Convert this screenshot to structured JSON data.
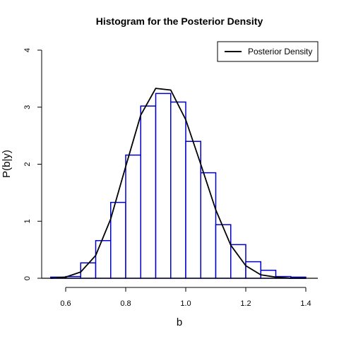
{
  "chart_data": {
    "type": "bar",
    "title": "Histogram for the Posterior Density",
    "xlabel": "b",
    "ylabel": "P(b|y)",
    "xlim": [
      0.52,
      1.44
    ],
    "ylim": [
      0,
      4
    ],
    "x_ticks": [
      0.6,
      0.8,
      1.0,
      1.2,
      1.4
    ],
    "x_tick_labels": [
      "0.6",
      "0.8",
      "1.0",
      "1.2",
      "1.4"
    ],
    "y_ticks": [
      0,
      1,
      2,
      3,
      4
    ],
    "y_tick_labels": [
      "0",
      "1",
      "2",
      "3",
      "4"
    ],
    "grid": false,
    "legend_position": "top-right",
    "bar_color": "#0000cc",
    "line_color": "#000000",
    "bins": [
      {
        "start": 0.55,
        "end": 0.6,
        "density": 0.02
      },
      {
        "start": 0.6,
        "end": 0.65,
        "density": 0.03
      },
      {
        "start": 0.65,
        "end": 0.7,
        "density": 0.27
      },
      {
        "start": 0.7,
        "end": 0.75,
        "density": 0.66
      },
      {
        "start": 0.75,
        "end": 0.8,
        "density": 1.33
      },
      {
        "start": 0.8,
        "end": 0.85,
        "density": 2.16
      },
      {
        "start": 0.85,
        "end": 0.9,
        "density": 3.02
      },
      {
        "start": 0.9,
        "end": 0.95,
        "density": 3.24
      },
      {
        "start": 0.95,
        "end": 1.0,
        "density": 3.09
      },
      {
        "start": 1.0,
        "end": 1.05,
        "density": 2.4
      },
      {
        "start": 1.05,
        "end": 1.1,
        "density": 1.85
      },
      {
        "start": 1.1,
        "end": 1.15,
        "density": 0.94
      },
      {
        "start": 1.15,
        "end": 1.2,
        "density": 0.59
      },
      {
        "start": 1.2,
        "end": 1.25,
        "density": 0.29
      },
      {
        "start": 1.25,
        "end": 1.3,
        "density": 0.14
      },
      {
        "start": 1.3,
        "end": 1.35,
        "density": 0.03
      },
      {
        "start": 1.35,
        "end": 1.4,
        "density": 0.02
      }
    ],
    "series": [
      {
        "name": "Posterior Density",
        "type": "line",
        "x": [
          0.55,
          0.6,
          0.65,
          0.7,
          0.75,
          0.8,
          0.85,
          0.9,
          0.95,
          1.0,
          1.05,
          1.1,
          1.15,
          1.2,
          1.25,
          1.3,
          1.35,
          1.4
        ],
        "y": [
          0.0,
          0.02,
          0.11,
          0.4,
          1.04,
          1.96,
          2.86,
          3.33,
          3.3,
          2.78,
          2.0,
          1.2,
          0.58,
          0.22,
          0.06,
          0.02,
          0.0,
          0.0
        ]
      }
    ]
  }
}
